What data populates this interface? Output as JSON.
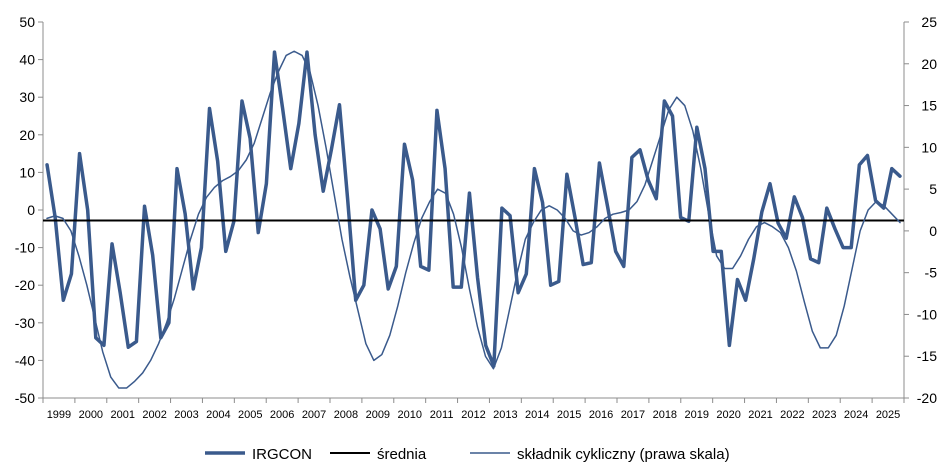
{
  "chart_data": {
    "type": "line",
    "title": "",
    "xlabel": "",
    "ylabel_left": "",
    "ylabel_right": "",
    "grid": false,
    "legend_position": "bottom",
    "x_start_year": 1999,
    "x_end_year": 2025,
    "x_tick_labels": [
      "1999",
      "2000",
      "2001",
      "2002",
      "2003",
      "2004",
      "2005",
      "2006",
      "2007",
      "2008",
      "2009",
      "2010",
      "2011",
      "2012",
      "2013",
      "2014",
      "2015",
      "2016",
      "2017",
      "2018",
      "2019",
      "2020",
      "2021",
      "2022",
      "2023",
      "2024",
      "2025"
    ],
    "y_left": {
      "min": -50,
      "max": 50,
      "step": 10,
      "tick_labels": [
        "50",
        "40",
        "30",
        "20",
        "10",
        "0",
        "-10",
        "-20",
        "-30",
        "-40",
        "-50"
      ]
    },
    "y_right": {
      "min": -20,
      "max": 25,
      "step": 5,
      "tick_labels": [
        "25",
        "20",
        "15",
        "10",
        "5",
        "0",
        "-5",
        "-10",
        "-15",
        "-20"
      ]
    },
    "series": [
      {
        "name": "IRGCON",
        "axis": "left",
        "color": "#3a5a8c",
        "stroke_width": 3.5,
        "values": [
          12,
          -2,
          -24,
          -17,
          15,
          0,
          -34,
          -36,
          -9,
          -22,
          -36.5,
          -35,
          1,
          -12,
          -34,
          -30,
          11,
          -1,
          -21,
          -10,
          27,
          13,
          -11,
          -3,
          29,
          19,
          -6,
          7,
          42,
          27,
          11,
          23,
          42,
          20,
          5,
          16,
          28,
          3,
          -24,
          -20,
          0,
          -5,
          -21,
          -15,
          17.5,
          8,
          -15,
          -16,
          26.5,
          11,
          -20.5,
          -20.5,
          4.5,
          -18,
          -36,
          -41.5,
          0.5,
          -1.5,
          -22,
          -17,
          11,
          2,
          -20,
          -19,
          9.5,
          -2,
          -14.5,
          -14,
          12.5,
          1,
          -11,
          -15,
          14,
          16,
          8,
          3,
          29,
          25,
          -2,
          -3,
          22,
          11,
          -11,
          -11,
          -36,
          -18.5,
          -24,
          -13,
          -0.5,
          7,
          -3.5,
          -7.5,
          3.5,
          -2,
          -13,
          -14,
          0.5,
          -5,
          -10,
          -10,
          12,
          14.5,
          2.5,
          0.5,
          11,
          9
        ]
      },
      {
        "name": "średnia",
        "axis": "left",
        "color": "#000000",
        "stroke_width": 2,
        "value": -2.8
      },
      {
        "name": "składnik cykliczny (prawa skala)",
        "axis": "right",
        "color": "#3a5a8c",
        "stroke_width": 1.5,
        "values": [
          1.5,
          1.8,
          1.5,
          0,
          -3,
          -6.5,
          -10.5,
          -14.5,
          -17.5,
          -18.8,
          -18.8,
          -18,
          -17,
          -15.5,
          -13.5,
          -11,
          -8,
          -4.5,
          -1,
          2,
          4,
          5.2,
          6,
          6.5,
          7.2,
          8.5,
          10.5,
          13.5,
          16.5,
          19,
          21,
          21.5,
          21,
          19,
          15,
          10,
          4.5,
          -1,
          -5.5,
          -9.5,
          -13.5,
          -15.5,
          -14.8,
          -12.5,
          -9,
          -5,
          -1.5,
          1.5,
          3.5,
          5,
          4.5,
          2,
          -2,
          -7,
          -11.5,
          -15,
          -16.5,
          -14,
          -9.5,
          -5,
          -1,
          1,
          2.5,
          3,
          2.5,
          1.5,
          0,
          -0.5,
          -0.2,
          0.5,
          1.5,
          2,
          2.2,
          2.5,
          3.5,
          5.5,
          8.5,
          11.5,
          14.5,
          16,
          15,
          12,
          7.5,
          2,
          -3,
          -4.5,
          -4.5,
          -3,
          -1,
          0.5,
          1,
          0.5,
          -0.2,
          -2,
          -4.8,
          -8.5,
          -12,
          -14,
          -14,
          -12.5,
          -9,
          -4.5,
          0,
          2.5,
          3.5,
          3,
          2,
          1
        ]
      }
    ]
  }
}
